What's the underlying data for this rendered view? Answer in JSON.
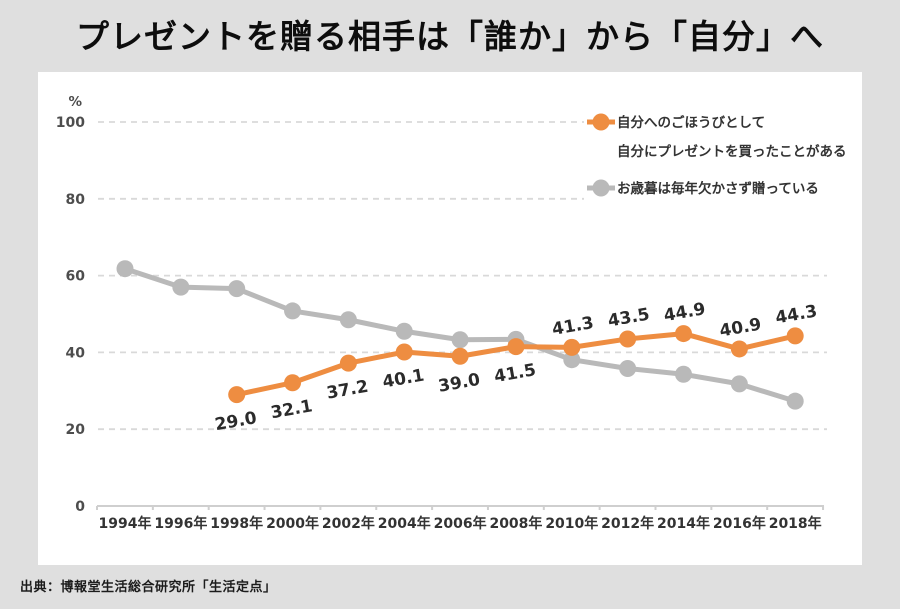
{
  "title": "プレゼントを贈る相手は「誰か」から「自分」へ",
  "source": "出典：博報堂生活総合研究所「生活定点」",
  "chart_data": {
    "type": "line",
    "unit_label": "%",
    "categories": [
      "1994年",
      "1996年",
      "1998年",
      "2000年",
      "2002年",
      "2004年",
      "2006年",
      "2008年",
      "2010年",
      "2012年",
      "2014年",
      "2016年",
      "2018年"
    ],
    "yticks": [
      0,
      20,
      40,
      60,
      80,
      100
    ],
    "ylim": [
      0,
      100
    ],
    "grid": "dashed-horizontal",
    "legend_position": "top-right",
    "colors": {
      "accent_orange": "#ee8d41",
      "line_gray": "#b9b9b9",
      "grid": "#d9d9d9",
      "axis": "#cfcfcf",
      "label_dark": "#2b2b2b",
      "tick_text": "#4d4d4d"
    },
    "series": [
      {
        "name": "自分へのごほうびとして自分にプレゼントを買ったことがある",
        "legend_lines": [
          "自分へのごほうびとして",
          "自分にプレゼントを買ったことがある"
        ],
        "color": "#ee8d41",
        "values": [
          null,
          null,
          29.0,
          32.1,
          37.2,
          40.1,
          39.0,
          41.5,
          41.3,
          43.5,
          44.9,
          40.9,
          44.3
        ],
        "data_labels": true,
        "label_sides": [
          null,
          null,
          "below",
          "below",
          "below",
          "below",
          "below",
          "below",
          "above",
          "above",
          "above",
          "above",
          "above"
        ]
      },
      {
        "name": "お歳暮は毎年欠かさず贈っている",
        "legend_lines": [
          "お歳暮は毎年欠かさず贈っている"
        ],
        "color": "#b9b9b9",
        "values": [
          61.8,
          57.0,
          56.6,
          50.8,
          48.5,
          45.5,
          43.3,
          43.4,
          38.1,
          35.8,
          34.3,
          31.8,
          27.3
        ],
        "values_estimated": true,
        "data_labels": false
      }
    ]
  }
}
